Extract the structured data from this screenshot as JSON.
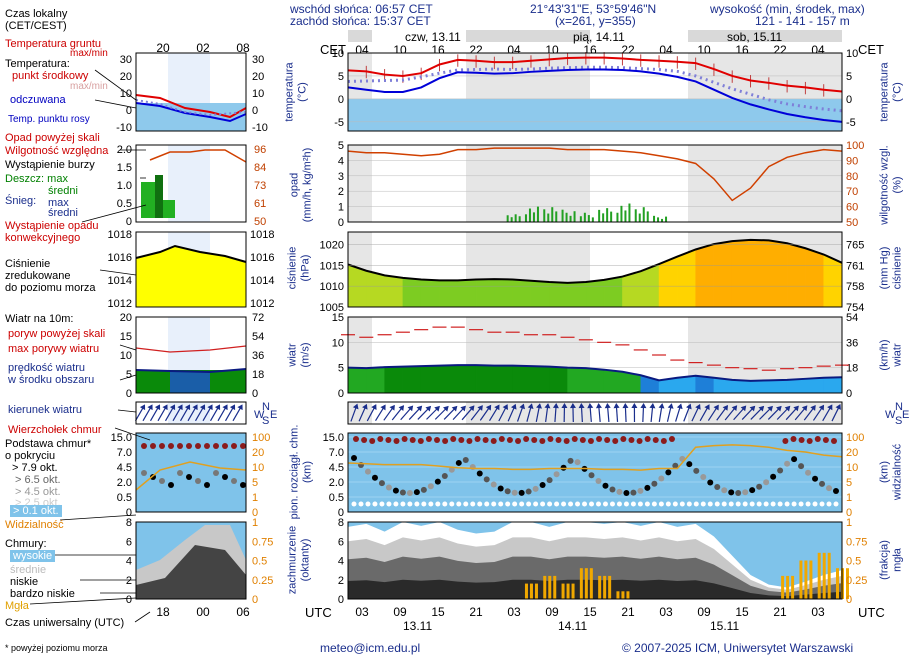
{
  "header": {
    "sunrise": "wschód słońca: 06:57 CET",
    "sunset": "zachód słońca: 15:37 CET",
    "coords": "21°43'31\"E, 53°59'46\"N",
    "grid": "(x=261, y=355)",
    "elev_title": "wysokość (min, środek, max)",
    "elev_values": "121 - 141 - 157 m"
  },
  "legend": {
    "time_local": "Czas lokalny\n(CET/CEST)",
    "soil_temp": "Temperatura gruntu",
    "soil_temp_sub": "max/min",
    "temperature": "Temperatura:",
    "mid_point": "punkt środkowy",
    "max_min": "max/min",
    "apparent": "odczuwana",
    "dew": "Temp. punktu rosy",
    "precip_above": "Opad powyżej skali",
    "humidity": "Wilgotność względna",
    "storm": "Wystąpienie burzy",
    "rain": "Deszcz: max",
    "rain_avg": "średni",
    "snow": "Śnieg:",
    "snow_max": "max",
    "snow_avg": "średni",
    "conv": "Wystąpienie opadu\nkonwekcyjnego",
    "pressure": "Ciśnienie\nzredukowane\ndo poziomu morza",
    "wind": "Wiatr na 10m:",
    "gust_above": "poryw powyżej skali",
    "gust_max": "max porywy wiatru",
    "wind_speed": "prędkość wiatru\nw środku obszaru",
    "wind_dir": "kierunek wiatru",
    "cloud_top": "Wierzchołek chmur",
    "cloud_base": "Podstawa chmur*\no pokryciu",
    "okt1": "> 7.9 okt.",
    "okt2": "> 6.5 okt.",
    "okt3": "> 4.5 okt.",
    "okt4": "> 2.5 okt.",
    "okt5": "> 0.1 okt.",
    "visibility": "Widzialność",
    "clouds": "Chmury:",
    "cl_high": "wysokie",
    "cl_mid": "średnie",
    "cl_low": "niskie",
    "cl_vlow": "bardzo niskie",
    "fog": "Mgła",
    "utc_title": "Czas uniwersalny (UTC)",
    "footnote": "* powyżej poziomu morza"
  },
  "footer": {
    "email": "meteo@icm.edu.pl",
    "copyright": "© 2007-2025 ICM, Uniwersytet Warszawski"
  },
  "chart_data": {
    "type": "line",
    "cet_label": "CET",
    "utc_label": "UTC",
    "days_top": [
      "czw, 13.11",
      "pią, 14.11",
      "sob, 15.11"
    ],
    "days_bottom": [
      "13.11",
      "14.11",
      "15.11"
    ],
    "hours_top": [
      "04",
      "10",
      "16",
      "22",
      "04",
      "10",
      "16",
      "22",
      "04",
      "10",
      "16",
      "22",
      "04"
    ],
    "hours_bottom": [
      "03",
      "09",
      "15",
      "21",
      "03",
      "09",
      "15",
      "21",
      "03",
      "09",
      "15",
      "21",
      "03"
    ],
    "mini_hours_top": [
      "20",
      "02",
      "08"
    ],
    "mini_hours_bottom": [
      "18",
      "00",
      "06"
    ],
    "panels": {
      "temperature": {
        "ylabel": "temperatura\n(°C)",
        "ylabel_right": "temperatura\n(°C)",
        "ylim": [
          -7,
          10
        ],
        "ticks": [
          "10",
          "5",
          "0",
          "-5"
        ],
        "mini_ticks": [
          "30",
          "20",
          "10",
          "0",
          "-10"
        ],
        "mid_point": [
          6.2,
          6.0,
          5.3,
          5.0,
          5.6,
          7.5,
          8.5,
          8.3,
          8.0,
          8.0,
          8.3,
          8.6,
          8.9,
          9.0,
          9.0,
          8.8,
          8.5,
          8.3,
          8.1,
          7.8,
          6.5,
          5.0,
          4.0,
          3.5,
          2.9,
          2.5,
          2.0,
          1.6
        ],
        "apparent": [
          2.5,
          2.0,
          1.5,
          1.5,
          2.5,
          4.5,
          5.8,
          5.7,
          5.5,
          5.6,
          5.9,
          6.1,
          6.3,
          6.4,
          6.4,
          6.3,
          6.0,
          5.5,
          4.8,
          3.8,
          2.0,
          0.2,
          -1.2,
          -2.3,
          -3.3,
          -4.0,
          -4.6,
          -5.0
        ],
        "dew": [
          3.8,
          3.9,
          4.0,
          4.1,
          4.8,
          5.6,
          6.3,
          6.4,
          6.5,
          6.4,
          6.5,
          6.7,
          6.8,
          6.9,
          6.9,
          6.8,
          6.6,
          6.4,
          6.0,
          5.0,
          3.6,
          2.2,
          1.0,
          -0.2,
          -1.1,
          -1.7,
          -2.2,
          -2.6
        ]
      },
      "precip_humidity": {
        "ylabel": "opad\n(mm/h, kg/m²h)",
        "ylabel_right": "wilgotność wzgl.\n(%)",
        "ticks_left": [
          "5",
          "4",
          "3",
          "2",
          "1",
          "0"
        ],
        "ticks_right": [
          "100",
          "90",
          "80",
          "70",
          "60",
          "50"
        ],
        "mini_ticks_left": [
          "2.0",
          "1.5",
          "1.0",
          "0.5",
          "0"
        ],
        "mini_ticks_right": [
          "96",
          "84",
          "73",
          "61",
          "50"
        ],
        "humidity": [
          96,
          95,
          95,
          94,
          93,
          94,
          97,
          97,
          98,
          98,
          98,
          98,
          97,
          97,
          97,
          96,
          95,
          93,
          91,
          88,
          78,
          64,
          72,
          86,
          92,
          95,
          97,
          96
        ],
        "rain": [
          0,
          0,
          0,
          0,
          0,
          0,
          0,
          0,
          0,
          0.5,
          1.0,
          1.1,
          0.8,
          0.6,
          0.9,
          1.2,
          1.1,
          0.4,
          0,
          0,
          0,
          0,
          0,
          0,
          0,
          0,
          0,
          0
        ]
      },
      "pressure": {
        "ylabel": "ciśnienie\n(hPa)",
        "ylabel_right": "(mm Hg)\nciśnienie",
        "ylim": [
          1005,
          1023
        ],
        "ticks_left": [
          "1020",
          "1015",
          "1010",
          "1005"
        ],
        "ticks_right": [
          "765",
          "761",
          "758",
          "754"
        ],
        "mini_ticks_left": [
          "1018",
          "1016",
          "1014",
          "1012"
        ],
        "mini_ticks_right": [
          "1018",
          "1016",
          "1014",
          "1012"
        ],
        "values": [
          1015.2,
          1013.7,
          1012.6,
          1012.0,
          1011.6,
          1011.4,
          1011.4,
          1011.6,
          1011.7,
          1011.6,
          1011.3,
          1011.0,
          1010.8,
          1011.0,
          1011.5,
          1012.3,
          1013.6,
          1015.3,
          1017.1,
          1018.8,
          1020.1,
          1020.8,
          1021.1,
          1021.0,
          1020.3,
          1019.1,
          1017.6,
          1015.6
        ]
      },
      "wind": {
        "ylabel": "wiatr\n(m/s)",
        "ylabel_right": "(km/h)\nwiatr",
        "ylim": [
          0,
          15
        ],
        "ticks_left": [
          "15",
          "10",
          "5",
          "0"
        ],
        "ticks_right": [
          "54",
          "36",
          "18",
          "0"
        ],
        "mini_ticks_left": [
          "20",
          "15",
          "10",
          "5",
          "0"
        ],
        "mini_ticks_right": [
          "72",
          "54",
          "36",
          "18",
          "0"
        ],
        "speed": [
          5.0,
          4.9,
          5.1,
          5.2,
          5.3,
          5.4,
          5.5,
          5.5,
          5.4,
          5.4,
          5.3,
          5.2,
          5.0,
          4.9,
          4.6,
          4.2,
          3.5,
          2.5,
          3.0,
          3.4,
          3.0,
          2.6,
          2.4,
          2.5,
          2.6,
          2.8,
          3.0,
          3.1
        ],
        "gust_max": [
          11.5,
          11.0,
          11.5,
          12.0,
          12.5,
          13.0,
          13.0,
          12.5,
          12.0,
          12.0,
          11.5,
          11.5,
          11.0,
          10.5,
          10.0,
          9.5,
          8.5,
          7.5,
          6.5,
          6.0,
          5.5,
          5.0,
          4.8,
          4.5,
          4.8,
          5.0,
          5.3,
          5.5
        ]
      },
      "direction": {
        "labels": [
          "N",
          "W",
          "E",
          "S"
        ]
      },
      "cloud_base": {
        "ylabel": "pion. rozciągł. chm.\n(km)",
        "ylabel_right": "(km)\nwidzialność",
        "ticks_left": [
          "15.0",
          "7.0",
          "4.5",
          "2.0",
          "0.5",
          "0"
        ],
        "ticks_right": [
          "100",
          "20",
          "10",
          "5",
          "1",
          "0"
        ],
        "mini_ticks_left": [
          "15.0",
          "7.0",
          "4.5",
          "2.0",
          "0.5",
          "0"
        ],
        "mini_ticks_right": [
          "100",
          "20",
          "10",
          "5",
          "1",
          "0"
        ],
        "visibility": [
          0.62,
          0.61,
          0.6,
          0.6,
          0.6,
          0.58,
          0.56,
          0.55,
          0.55,
          0.54,
          0.54,
          0.55,
          0.55,
          0.55,
          0.54,
          0.54,
          0.53,
          0.55,
          0.55,
          0.82,
          0.84,
          0.85,
          0.84,
          0.82,
          0.78,
          0.76,
          0.72,
          0.7
        ]
      },
      "clouds": {
        "ylabel": "zachmurzenie\n(oktanty)",
        "ylabel_right": "(frakcja)\nmgła",
        "ticks_left": [
          "8",
          "6",
          "4",
          "2",
          "0"
        ],
        "ticks_right": [
          "1",
          "0.75",
          "0.5",
          "0.25",
          "0"
        ],
        "mini_ticks_left": [
          "8",
          "6",
          "4",
          "2",
          "0"
        ],
        "mini_ticks_right": [
          "1",
          "0.75",
          "0.5",
          "0.25",
          "0"
        ],
        "total": [
          7.5,
          7.8,
          7.0,
          8.0,
          7.6,
          8.0,
          7.2,
          6.8,
          7.0,
          8.0,
          8.0,
          7.5,
          8.0,
          8.0,
          7.8,
          8.0,
          7.6,
          8.0,
          7.5,
          7.8,
          6.5,
          4.5,
          2.5,
          1.5,
          1.2,
          1.8,
          2.5,
          3.0
        ],
        "fog": [
          0,
          0,
          0,
          0,
          0,
          0,
          0,
          0,
          0,
          0,
          0.2,
          0.3,
          0.2,
          0.4,
          0.3,
          0.1,
          0,
          0,
          0,
          0,
          0,
          0,
          0,
          0,
          0.3,
          0.5,
          0.6,
          0.4
        ]
      }
    }
  }
}
